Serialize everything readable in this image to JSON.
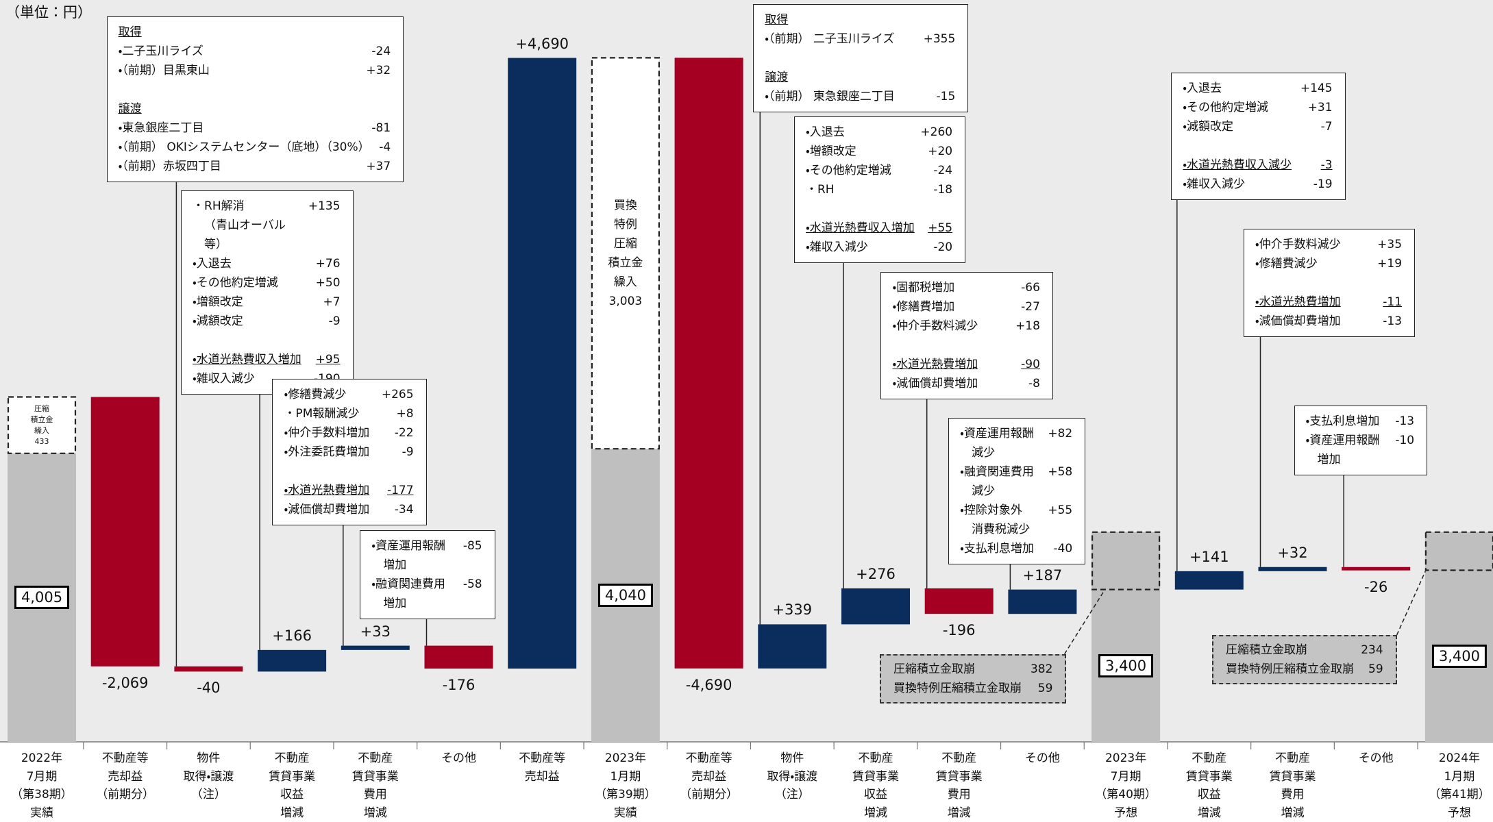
{
  "chart_data": {
    "type": "waterfall",
    "unit_label": "（単位：円）",
    "categories": [
      "2022年\n7月期\n（第38期）\n実績",
      "不動産等\n売却益\n（前期分）",
      "物件\n取得・譲渡\n（注）",
      "不動産\n賃貸事業\n収益\n増減",
      "不動産\n賃貸事業\n費用\n増減",
      "その他",
      "不動産等\n売却益",
      "2023年\n1月期\n（第39期）\n実績",
      "不動産等\n売却益\n（前期分）",
      "物件\n取得・譲渡\n（注）",
      "不動産\n賃貸事業\n収益\n増減",
      "不動産\n賃貸事業\n費用\n増減",
      "その他",
      "2023年\n7月期\n（第40期）\n予想",
      "不動産\n賃貸事業\n収益\n増減",
      "不動産\n賃貸事業\n費用\n増減",
      "その他",
      "2024年\n1月期\n（第41期）\n予想"
    ],
    "values": [
      4005,
      -2069,
      -40,
      166,
      33,
      -176,
      4690,
      4040,
      -4690,
      339,
      276,
      -196,
      187,
      3400,
      141,
      32,
      -26,
      3400
    ],
    "value_labels": [
      "4,005",
      "-2,069",
      "-40",
      "+166",
      "+33",
      "-176",
      "+4,690",
      "4,040",
      "-4,690",
      "+339",
      "+276",
      "-196",
      "+187",
      "3,400",
      "+141",
      "+32",
      "-26",
      "3,400"
    ],
    "colors": [
      "#bfbfbf",
      "#a50021",
      "#a50021",
      "#0b2d5e",
      "#0b2d5e",
      "#a50021",
      "#0b2d5e",
      "#bfbfbf",
      "#a50021",
      "#0b2d5e",
      "#0b2d5e",
      "#a50021",
      "#0b2d5e",
      "#bfbfbf",
      "#0b2d5e",
      "#0b2d5e",
      "#a50021",
      "#bfbfbf"
    ],
    "reserves": [
      {
        "label": "圧縮\n積立金\n繰入",
        "values": [
          433
        ],
        "value_labels": [
          "433"
        ]
      },
      null,
      null,
      null,
      null,
      null,
      null,
      {
        "label": "買換\n特例\n圧縮\n積立金\n繰入",
        "values": [
          3003
        ],
        "value_labels": [
          "3,003"
        ]
      },
      null,
      null,
      null,
      null,
      null,
      {
        "names": [
          "圧縮積立金取崩",
          "買換特例圧縮積立金取崩"
        ],
        "values": [
          382,
          59
        ]
      },
      null,
      null,
      null,
      {
        "names": [
          "圧縮積立金取崩",
          "買換特例圧縮積立金取崩"
        ],
        "values": [
          234,
          59
        ]
      }
    ],
    "notes": [
      {
        "groups": [
          {
            "heading": "取得",
            "items": [
              {
                "text": "・二子玉川ライズ",
                "value": "-24"
              },
              {
                "text": "・（前期）目黒東山",
                "value": "+32"
              }
            ]
          },
          {
            "heading": "譲渡",
            "items": [
              {
                "text": "・東急銀座二丁目",
                "value": "-81"
              },
              {
                "text": "・（前期） OKIシステムセンター（底地）（30%）",
                "value": "-4"
              },
              {
                "text": "・（前期）赤坂四丁目",
                "value": "+37"
              }
            ]
          }
        ]
      },
      {
        "groups": [
          {
            "items": [
              {
                "text": "・RH解消\n（青山オーバル等）",
                "value": "+135"
              },
              {
                "text": "・入退去",
                "value": "+76"
              },
              {
                "text": "・その他約定増減",
                "value": "+50"
              },
              {
                "text": "・増額改定",
                "value": "+7"
              },
              {
                "text": "・減額改定",
                "value": "-9"
              }
            ]
          },
          {
            "items": [
              {
                "text": "・水道光熱費収入増加",
                "value": "+95",
                "underline": true
              },
              {
                "text": "・雑収入減少",
                "value": "-190"
              }
            ]
          }
        ]
      },
      {
        "groups": [
          {
            "items": [
              {
                "text": "・修繕費減少",
                "value": "+265"
              },
              {
                "text": "・PM報酬減少",
                "value": "+8"
              },
              {
                "text": "・仲介手数料増加",
                "value": "-22"
              },
              {
                "text": "・外注委託費増加",
                "value": "-9"
              }
            ]
          },
          {
            "items": [
              {
                "text": "・水道光熱費増加",
                "value": "-177",
                "underline": true
              },
              {
                "text": "・減価償却費増加",
                "value": "-34"
              }
            ]
          }
        ]
      },
      {
        "groups": [
          {
            "items": [
              {
                "text": "・資産運用報酬\n増加",
                "value": "-85"
              },
              {
                "text": "・融資関連費用\n増加",
                "value": "-58"
              }
            ]
          }
        ]
      },
      {
        "groups": [
          {
            "heading": "取得",
            "items": [
              {
                "text": "・（前期） 二子玉川ライズ",
                "value": "+355"
              }
            ]
          },
          {
            "heading": "譲渡",
            "items": [
              {
                "text": "・（前期） 東急銀座二丁目",
                "value": "-15"
              }
            ]
          }
        ]
      },
      {
        "groups": [
          {
            "items": [
              {
                "text": "・入退去",
                "value": "+260"
              },
              {
                "text": "・増額改定",
                "value": "+20"
              },
              {
                "text": "・その他約定増減",
                "value": "-24"
              },
              {
                "text": "・RH",
                "value": "-18"
              }
            ]
          },
          {
            "items": [
              {
                "text": "・水道光熱費収入増加",
                "value": "+55",
                "underline": true
              },
              {
                "text": "・雑収入減少",
                "value": "-20"
              }
            ]
          }
        ]
      },
      {
        "groups": [
          {
            "items": [
              {
                "text": "・固都税増加",
                "value": "-66"
              },
              {
                "text": "・修繕費増加",
                "value": "-27"
              },
              {
                "text": "・仲介手数料減少",
                "value": "+18"
              }
            ]
          },
          {
            "items": [
              {
                "text": "・水道光熱費増加",
                "value": "-90",
                "underline": true
              },
              {
                "text": "・減価償却費増加",
                "value": "-8"
              }
            ]
          }
        ]
      },
      {
        "groups": [
          {
            "items": [
              {
                "text": "・資産運用報酬\n減少",
                "value": "+82"
              },
              {
                "text": "・融資関連費用\n減少",
                "value": "+58"
              },
              {
                "text": "・控除対象外\n消費税減少",
                "value": "+55"
              },
              {
                "text": "・支払利息増加",
                "value": "-40"
              }
            ]
          }
        ]
      },
      {
        "groups": [
          {
            "items": [
              {
                "text": "・入退去",
                "value": "+145"
              },
              {
                "text": "・その他約定増減",
                "value": "+31"
              },
              {
                "text": "・減額改定",
                "value": "-7"
              }
            ]
          },
          {
            "items": [
              {
                "text": "・水道光熱費収入減少",
                "value": "-3",
                "underline": true
              },
              {
                "text": "・雑収入減少",
                "value": "-19"
              }
            ]
          }
        ]
      },
      {
        "groups": [
          {
            "items": [
              {
                "text": "・仲介手数料減少",
                "value": "+35"
              },
              {
                "text": "・修繕費減少",
                "value": "+19"
              }
            ]
          },
          {
            "items": [
              {
                "text": "・水道光熱費増加",
                "value": "-11",
                "underline": true
              },
              {
                "text": "・減価償却費増加",
                "value": "-13"
              }
            ]
          }
        ]
      },
      {
        "groups": [
          {
            "items": [
              {
                "text": "・支払利息増加",
                "value": "-13"
              },
              {
                "text": "・資産運用報酬\n増加",
                "value": "-10"
              }
            ]
          }
        ]
      }
    ]
  }
}
